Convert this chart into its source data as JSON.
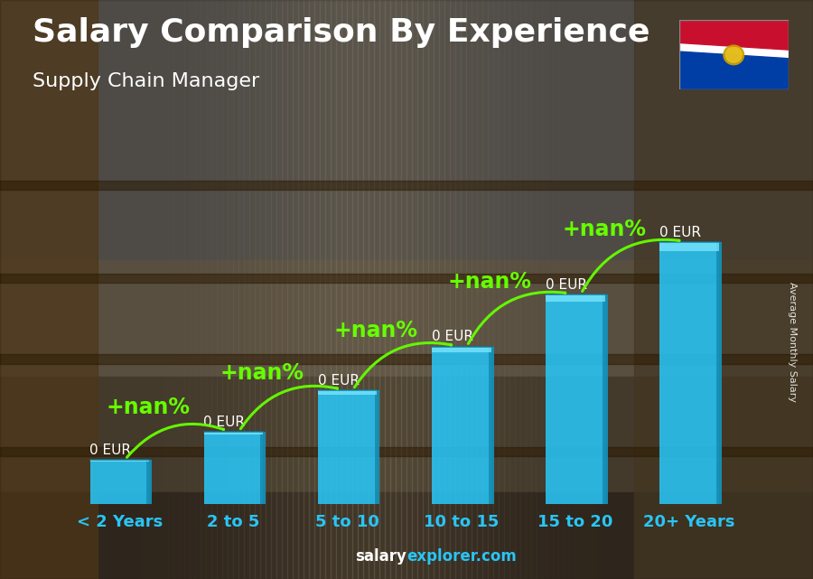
{
  "title": "Salary Comparison By Experience",
  "subtitle": "Supply Chain Manager",
  "categories": [
    "< 2 Years",
    "2 to 5",
    "5 to 10",
    "10 to 15",
    "15 to 20",
    "20+ Years"
  ],
  "value_labels": [
    "0 EUR",
    "0 EUR",
    "0 EUR",
    "0 EUR",
    "0 EUR",
    "0 EUR"
  ],
  "pct_labels": [
    "+nan%",
    "+nan%",
    "+nan%",
    "+nan%",
    "+nan%"
  ],
  "ylabel_text": "Average Monthly Salary",
  "footer_salary": "salary",
  "footer_explorer": "explorer.com",
  "title_fontsize": 26,
  "subtitle_fontsize": 16,
  "bar_width": 0.52,
  "bar_face_color": "#29c5f6",
  "bar_side_color": "#1590b8",
  "bar_top_color": "#7de8ff",
  "text_color": "#ffffff",
  "green_color": "#66ff00",
  "value_label_color": "#ffffff",
  "bar_heights": [
    1.0,
    1.65,
    2.6,
    3.6,
    4.8,
    6.0
  ],
  "ylim": [
    0,
    7.5
  ],
  "bg_colors": [
    "#5a4a3a",
    "#4a3a2a",
    "#3a3a3a",
    "#4a4a4a",
    "#5a5a5a"
  ],
  "overlay_alpha": 0.35,
  "xlabel_fontsize": 13,
  "value_label_fontsize": 11,
  "pct_fontsize": 17
}
